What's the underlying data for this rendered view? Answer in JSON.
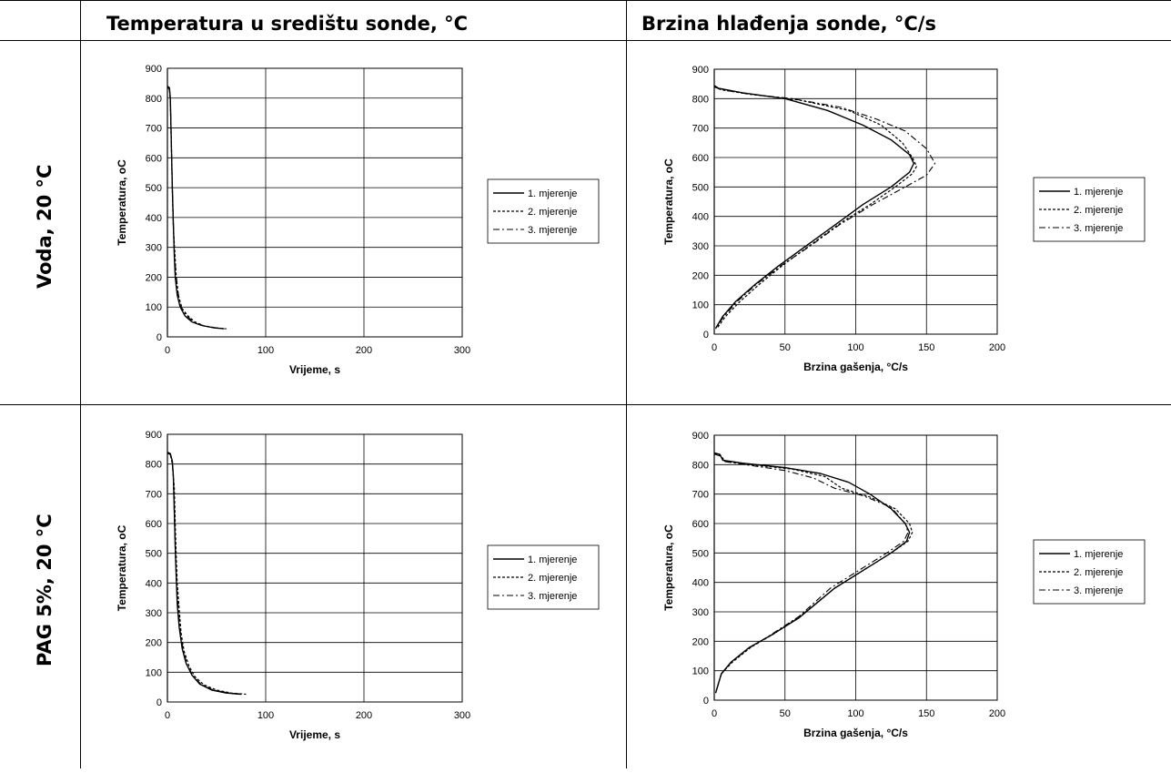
{
  "header": {
    "col1": "Temperatura u središtu sonde, °C",
    "col2": "Brzina hlađenja sonde, °C/s"
  },
  "rows": [
    {
      "label": "Voda, 20 °C"
    },
    {
      "label": "PAG 5%, 20 °C"
    }
  ],
  "chart_data": [
    {
      "type": "line",
      "xlabel": "Vrijeme, s",
      "ylabel": "Temperatura, oC",
      "xlim": [
        0,
        300
      ],
      "ylim": [
        0,
        900
      ],
      "xticks": [
        0,
        100,
        200,
        300
      ],
      "yticks": [
        0,
        100,
        200,
        300,
        400,
        500,
        600,
        700,
        800,
        900
      ],
      "grid": "vertical and horizontal",
      "legend": "right",
      "series": [
        {
          "name": "1. mjerenje",
          "points": [
            [
              0,
              840
            ],
            [
              2,
              835
            ],
            [
              3,
              800
            ],
            [
              4,
              650
            ],
            [
              5,
              500
            ],
            [
              6,
              380
            ],
            [
              7,
              270
            ],
            [
              8,
              200
            ],
            [
              10,
              140
            ],
            [
              13,
              100
            ],
            [
              18,
              70
            ],
            [
              25,
              50
            ],
            [
              35,
              38
            ],
            [
              48,
              30
            ],
            [
              58,
              27
            ]
          ]
        },
        {
          "name": "2. mjerenje",
          "points": [
            [
              0,
              838
            ],
            [
              2,
              832
            ],
            [
              3,
              790
            ],
            [
              4,
              640
            ],
            [
              5,
              490
            ],
            [
              6,
              370
            ],
            [
              8,
              260
            ],
            [
              9,
              200
            ],
            [
              11,
              140
            ],
            [
              15,
              95
            ],
            [
              21,
              70
            ],
            [
              28,
              50
            ],
            [
              38,
              36
            ],
            [
              50,
              30
            ],
            [
              60,
              27
            ]
          ]
        },
        {
          "name": "3. mjerenje",
          "points": [
            [
              0,
              836
            ],
            [
              2,
              830
            ],
            [
              3,
              795
            ],
            [
              4,
              655
            ],
            [
              5,
              505
            ],
            [
              6,
              385
            ],
            [
              7,
              275
            ],
            [
              9,
              205
            ],
            [
              11,
              145
            ],
            [
              14,
              100
            ],
            [
              19,
              72
            ],
            [
              26,
              52
            ],
            [
              36,
              38
            ],
            [
              48,
              31
            ],
            [
              57,
              28
            ]
          ]
        }
      ]
    },
    {
      "type": "line",
      "xlabel": "Brzina gašenja, °C/s",
      "ylabel": "Temperatura, oC",
      "xlim": [
        0,
        200
      ],
      "ylim": [
        0,
        900
      ],
      "xticks": [
        0,
        50,
        100,
        150,
        200
      ],
      "yticks": [
        0,
        100,
        200,
        300,
        400,
        500,
        600,
        700,
        800,
        900
      ],
      "grid": "vertical and horizontal",
      "legend": "right",
      "series": [
        {
          "name": "1. mjerenje",
          "points": [
            [
              0,
              845
            ],
            [
              3,
              835
            ],
            [
              20,
              820
            ],
            [
              50,
              800
            ],
            [
              80,
              760
            ],
            [
              105,
              710
            ],
            [
              125,
              660
            ],
            [
              138,
              610
            ],
            [
              141,
              580
            ],
            [
              138,
              550
            ],
            [
              125,
              500
            ],
            [
              105,
              440
            ],
            [
              85,
              370
            ],
            [
              65,
              300
            ],
            [
              45,
              230
            ],
            [
              28,
              165
            ],
            [
              15,
              110
            ],
            [
              6,
              60
            ],
            [
              1,
              20
            ]
          ]
        },
        {
          "name": "2. mjerenje",
          "points": [
            [
              0,
              840
            ],
            [
              5,
              830
            ],
            [
              25,
              815
            ],
            [
              60,
              795
            ],
            [
              95,
              760
            ],
            [
              118,
              710
            ],
            [
              133,
              650
            ],
            [
              140,
              600
            ],
            [
              143,
              570
            ],
            [
              140,
              545
            ],
            [
              128,
              500
            ],
            [
              110,
              440
            ],
            [
              90,
              380
            ],
            [
              70,
              310
            ],
            [
              50,
              240
            ],
            [
              32,
              170
            ],
            [
              18,
              110
            ],
            [
              8,
              60
            ],
            [
              2,
              20
            ]
          ]
        },
        {
          "name": "3. mjerenje",
          "points": [
            [
              0,
              840
            ],
            [
              5,
              830
            ],
            [
              25,
              815
            ],
            [
              55,
              800
            ],
            [
              90,
              770
            ],
            [
              115,
              730
            ],
            [
              135,
              690
            ],
            [
              150,
              630
            ],
            [
              156,
              580
            ],
            [
              150,
              540
            ],
            [
              135,
              500
            ],
            [
              112,
              440
            ],
            [
              88,
              370
            ],
            [
              68,
              300
            ],
            [
              48,
              235
            ],
            [
              30,
              170
            ],
            [
              16,
              110
            ],
            [
              6,
              55
            ],
            [
              1,
              18
            ]
          ]
        }
      ]
    },
    {
      "type": "line",
      "xlabel": "Vrijeme, s",
      "ylabel": "Temperatura, oC",
      "xlim": [
        0,
        300
      ],
      "ylim": [
        0,
        900
      ],
      "xticks": [
        0,
        100,
        200,
        300
      ],
      "yticks": [
        0,
        100,
        200,
        300,
        400,
        500,
        600,
        700,
        800,
        900
      ],
      "grid": "vertical and horizontal",
      "legend": "right",
      "series": [
        {
          "name": "1. mjerenje",
          "points": [
            [
              0,
              840
            ],
            [
              3,
              835
            ],
            [
              5,
              810
            ],
            [
              6,
              760
            ],
            [
              7,
              640
            ],
            [
              8,
              520
            ],
            [
              9,
              420
            ],
            [
              10,
              330
            ],
            [
              12,
              250
            ],
            [
              15,
              180
            ],
            [
              19,
              130
            ],
            [
              25,
              90
            ],
            [
              33,
              60
            ],
            [
              45,
              40
            ],
            [
              60,
              30
            ],
            [
              75,
              26
            ]
          ]
        },
        {
          "name": "2. mjerenje",
          "points": [
            [
              0,
              838
            ],
            [
              3,
              832
            ],
            [
              5,
              800
            ],
            [
              7,
              720
            ],
            [
              8,
              600
            ],
            [
              9,
              490
            ],
            [
              10,
              400
            ],
            [
              12,
              310
            ],
            [
              14,
              230
            ],
            [
              17,
              170
            ],
            [
              22,
              120
            ],
            [
              28,
              85
            ],
            [
              37,
              58
            ],
            [
              50,
              40
            ],
            [
              65,
              30
            ],
            [
              80,
              26
            ]
          ]
        },
        {
          "name": "3. mjerenje",
          "points": [
            [
              0,
              836
            ],
            [
              3,
              832
            ],
            [
              5,
              805
            ],
            [
              6,
              750
            ],
            [
              7,
              630
            ],
            [
              8,
              510
            ],
            [
              9,
              410
            ],
            [
              11,
              320
            ],
            [
              13,
              240
            ],
            [
              16,
              175
            ],
            [
              20,
              125
            ],
            [
              26,
              88
            ],
            [
              34,
              60
            ],
            [
              46,
              41
            ],
            [
              61,
              31
            ],
            [
              74,
              27
            ]
          ]
        }
      ]
    },
    {
      "type": "line",
      "xlabel": "Brzina gašenja, °C/s",
      "ylabel": "Temperatura, oC",
      "xlim": [
        0,
        200
      ],
      "ylim": [
        0,
        900
      ],
      "xticks": [
        0,
        50,
        100,
        150,
        200
      ],
      "yticks": [
        0,
        100,
        200,
        300,
        400,
        500,
        600,
        700,
        800,
        900
      ],
      "grid": "vertical and horizontal",
      "legend": "right",
      "series": [
        {
          "name": "1. mjerenje",
          "points": [
            [
              0,
              840
            ],
            [
              4,
              835
            ],
            [
              6,
              815
            ],
            [
              20,
              805
            ],
            [
              50,
              790
            ],
            [
              75,
              770
            ],
            [
              95,
              740
            ],
            [
              110,
              700
            ],
            [
              125,
              650
            ],
            [
              135,
              600
            ],
            [
              138,
              570
            ],
            [
              136,
              540
            ],
            [
              125,
              500
            ],
            [
              105,
              440
            ],
            [
              85,
              380
            ],
            [
              60,
              280
            ],
            [
              40,
              220
            ],
            [
              25,
              180
            ],
            [
              12,
              130
            ],
            [
              5,
              90
            ],
            [
              1,
              25
            ]
          ]
        },
        {
          "name": "2. mjerenje",
          "points": [
            [
              0,
              838
            ],
            [
              5,
              830
            ],
            [
              7,
              812
            ],
            [
              25,
              800
            ],
            [
              55,
              785
            ],
            [
              78,
              760
            ],
            [
              90,
              720
            ],
            [
              110,
              690
            ],
            [
              128,
              650
            ],
            [
              138,
              600
            ],
            [
              140,
              570
            ],
            [
              137,
              540
            ],
            [
              125,
              500
            ],
            [
              105,
              440
            ],
            [
              85,
              380
            ],
            [
              62,
              290
            ],
            [
              42,
              225
            ],
            [
              26,
              180
            ],
            [
              13,
              130
            ],
            [
              5,
              90
            ],
            [
              1,
              25
            ]
          ]
        },
        {
          "name": "3. mjerenje",
          "points": [
            [
              0,
              836
            ],
            [
              5,
              828
            ],
            [
              8,
              810
            ],
            [
              25,
              798
            ],
            [
              50,
              780
            ],
            [
              70,
              755
            ],
            [
              85,
              720
            ],
            [
              105,
              695
            ],
            [
              125,
              655
            ],
            [
              135,
              600
            ],
            [
              137,
              570
            ],
            [
              134,
              540
            ],
            [
              122,
              500
            ],
            [
              102,
              440
            ],
            [
              82,
              380
            ],
            [
              60,
              285
            ],
            [
              40,
              222
            ],
            [
              25,
              178
            ],
            [
              12,
              130
            ],
            [
              5,
              88
            ],
            [
              1,
              24
            ]
          ]
        }
      ]
    }
  ]
}
